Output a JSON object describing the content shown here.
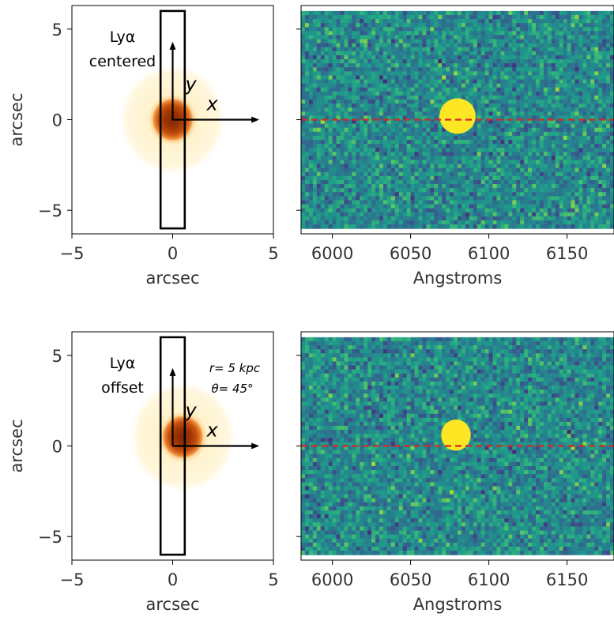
{
  "chart_data": [
    {
      "type": "heatmap",
      "panel": "top-left",
      "description_kind": "2D image with slit overlay",
      "xlabel": "arcsec",
      "ylabel": "arcsec",
      "xlim": [
        -5,
        5
      ],
      "ylim": [
        -6.3,
        6.3
      ],
      "xticks": [
        -5,
        0,
        5
      ],
      "yticks": [
        -5,
        0,
        5
      ],
      "source_center": [
        0,
        0
      ],
      "slit": {
        "x": [
          -0.6,
          0.6
        ],
        "y": [
          -6.0,
          6.0
        ]
      },
      "axes_origin": [
        0,
        0
      ],
      "x_arrow_end": [
        4.3,
        0
      ],
      "y_arrow_end": [
        0,
        4.3
      ],
      "label_x": "x",
      "label_y": "y",
      "text_line1": "Lyα",
      "text_line2": "centered",
      "text_param_r": "",
      "text_param_theta": ""
    },
    {
      "type": "heatmap",
      "panel": "top-right",
      "description_kind": "2D spectrum",
      "xlabel": "Angstroms",
      "ylabel": "",
      "xlim": [
        5980,
        6180
      ],
      "ylim": [
        -6.3,
        6.3
      ],
      "xticks": [
        6000,
        6050,
        6100,
        6150
      ],
      "yticks": [
        -5,
        0,
        5
      ],
      "data_extent_y": [
        -6.0,
        6.0
      ],
      "emission_center": [
        6080,
        0.2
      ],
      "emission_width_A": 22,
      "emission_height_arcsec": 1.7,
      "dashed_line_y": 0,
      "dashed_line_color": "#d62728",
      "colormap": "viridis"
    },
    {
      "type": "heatmap",
      "panel": "bottom-left",
      "description_kind": "2D image with slit overlay",
      "xlabel": "arcsec",
      "ylabel": "arcsec",
      "xlim": [
        -5,
        5
      ],
      "ylim": [
        -6.3,
        6.3
      ],
      "xticks": [
        -5,
        0,
        5
      ],
      "yticks": [
        -5,
        0,
        5
      ],
      "source_center": [
        0.5,
        0.5
      ],
      "slit": {
        "x": [
          -0.6,
          0.6
        ],
        "y": [
          -6.0,
          6.0
        ]
      },
      "axes_origin": [
        0,
        0
      ],
      "x_arrow_end": [
        4.3,
        0
      ],
      "y_arrow_end": [
        0,
        4.3
      ],
      "label_x": "x",
      "label_y": "y",
      "text_line1": "Lyα",
      "text_line2": "offset",
      "text_param_r": "r= 5 kpc",
      "text_param_theta": "θ= 45°"
    },
    {
      "type": "heatmap",
      "panel": "bottom-right",
      "description_kind": "2D spectrum",
      "xlabel": "Angstroms",
      "ylabel": "",
      "xlim": [
        5980,
        6180
      ],
      "ylim": [
        -6.3,
        6.3
      ],
      "xticks": [
        6000,
        6050,
        6100,
        6150
      ],
      "yticks": [
        -5,
        0,
        5
      ],
      "data_extent_y": [
        -6.0,
        6.0
      ],
      "emission_center": [
        6079,
        0.6
      ],
      "emission_width_A": 18,
      "emission_height_arcsec": 1.5,
      "dashed_line_y": 0,
      "dashed_line_color": "#d62728",
      "colormap": "viridis"
    }
  ]
}
